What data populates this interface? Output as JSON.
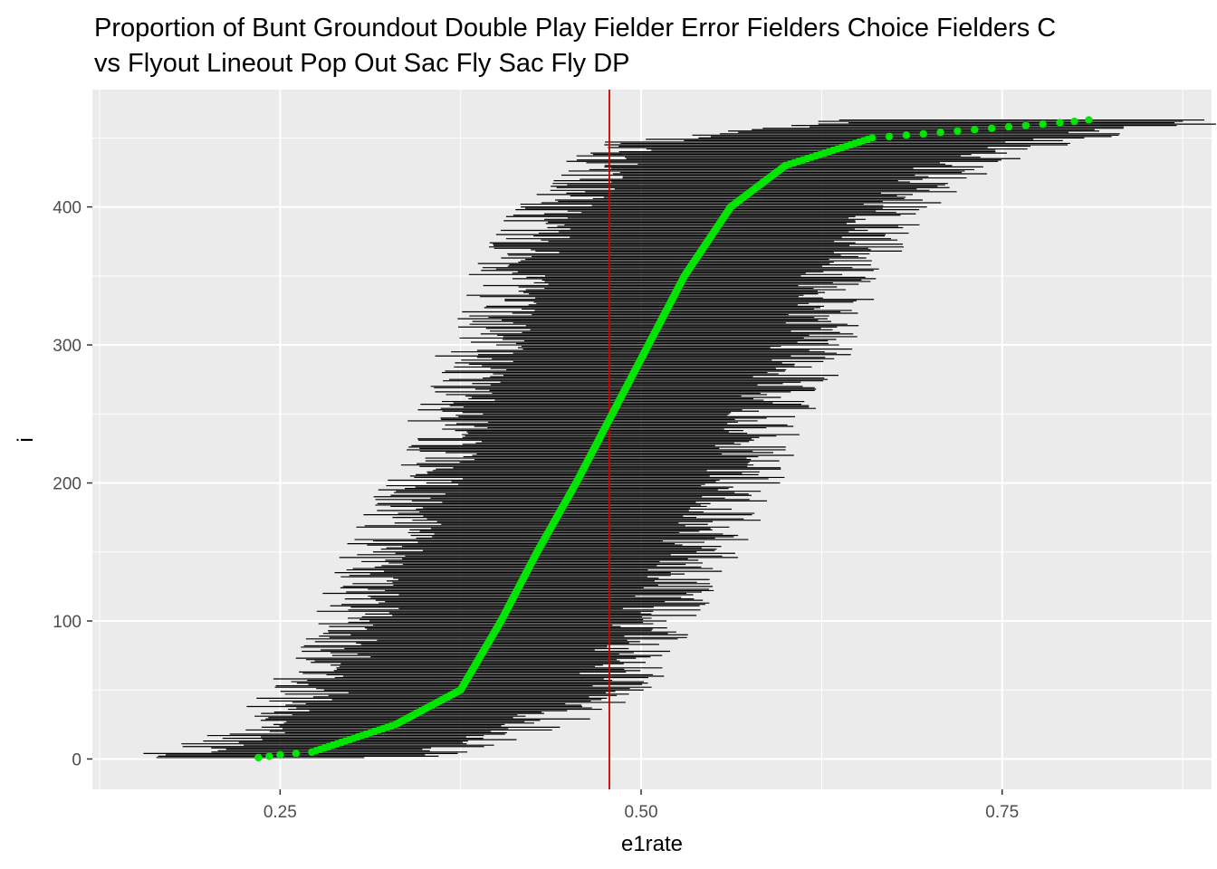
{
  "chart_data": {
    "type": "scatter",
    "title": [
      "Proportion of  Bunt Groundout Double Play Fielder Error Fielders Choice Fielders C",
      "vs Flyout Lineout Pop Out Sac Fly Sac Fly DP"
    ],
    "xlabel": "e1rate",
    "ylabel": "i",
    "xlim": [
      0.12,
      0.895
    ],
    "ylim": [
      -22,
      485
    ],
    "x_ticks": [
      0.25,
      0.5,
      0.75
    ],
    "x_tick_labels": [
      "0.25",
      "0.50",
      "0.75"
    ],
    "y_ticks": [
      0,
      100,
      200,
      300,
      400
    ],
    "y_tick_labels": [
      "0",
      "100",
      "200",
      "300",
      "400"
    ],
    "grid": true,
    "n_points": 463,
    "reference_line": {
      "x": 0.478,
      "color": "#cc0000"
    },
    "point_color": "#00e600",
    "interval_color": "#000000",
    "panel_background": "#ebebeb",
    "points_sample": [
      {
        "i": 1,
        "estimate": 0.235,
        "lower": 0.155,
        "upper": 0.32
      },
      {
        "i": 3,
        "estimate": 0.25,
        "lower": 0.16,
        "upper": 0.34
      },
      {
        "i": 5,
        "estimate": 0.272,
        "lower": 0.19,
        "upper": 0.36
      },
      {
        "i": 25,
        "estimate": 0.33,
        "lower": 0.24,
        "upper": 0.43
      },
      {
        "i": 50,
        "estimate": 0.375,
        "lower": 0.27,
        "upper": 0.48
      },
      {
        "i": 100,
        "estimate": 0.403,
        "lower": 0.3,
        "upper": 0.51
      },
      {
        "i": 150,
        "estimate": 0.428,
        "lower": 0.32,
        "upper": 0.54
      },
      {
        "i": 200,
        "estimate": 0.455,
        "lower": 0.35,
        "upper": 0.57
      },
      {
        "i": 250,
        "estimate": 0.48,
        "lower": 0.37,
        "upper": 0.59
      },
      {
        "i": 300,
        "estimate": 0.505,
        "lower": 0.39,
        "upper": 0.62
      },
      {
        "i": 350,
        "estimate": 0.53,
        "lower": 0.41,
        "upper": 0.64
      },
      {
        "i": 400,
        "estimate": 0.562,
        "lower": 0.44,
        "upper": 0.68
      },
      {
        "i": 430,
        "estimate": 0.6,
        "lower": 0.47,
        "upper": 0.72
      },
      {
        "i": 450,
        "estimate": 0.66,
        "lower": 0.51,
        "upper": 0.79
      },
      {
        "i": 461,
        "estimate": 0.79,
        "lower": 0.62,
        "upper": 0.88
      },
      {
        "i": 463,
        "estimate": 0.81,
        "lower": 0.63,
        "upper": 0.885
      }
    ]
  }
}
